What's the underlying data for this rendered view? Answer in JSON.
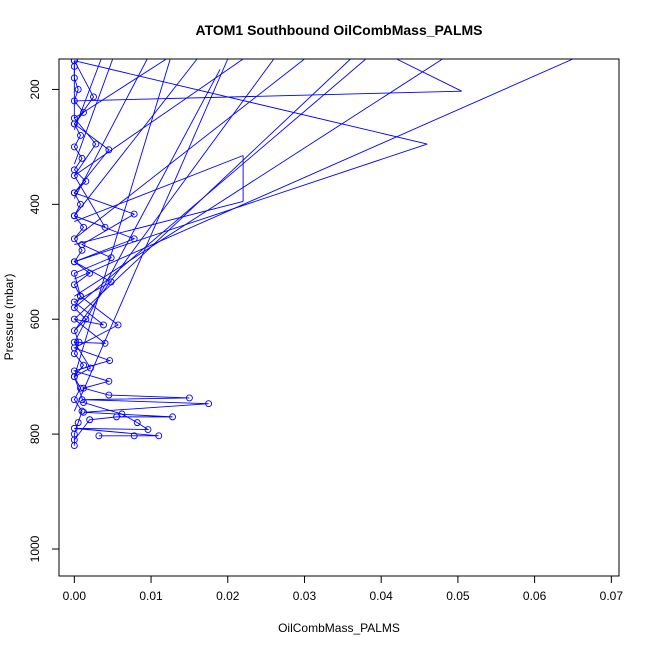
{
  "chart_data": {
    "type": "line",
    "title": "ATOM1 Southbound OilCombMass_PALMS",
    "xlabel": "OilCombMass_PALMS",
    "ylabel": "Pressure (mbar)",
    "xlim": [
      -0.002,
      0.071
    ],
    "ylim": [
      1047,
      147
    ],
    "y_reversed": true,
    "grid": false,
    "xticks": [
      0.0,
      0.01,
      0.02,
      0.03,
      0.04,
      0.05,
      0.06,
      0.07
    ],
    "xtick_labels": [
      "0.00",
      "0.01",
      "0.02",
      "0.03",
      "0.04",
      "0.05",
      "0.06",
      "0.07"
    ],
    "yticks": [
      200,
      400,
      600,
      800,
      1000
    ],
    "ytick_labels": [
      "200",
      "400",
      "600",
      "800",
      "1000"
    ],
    "series_color": "#0000ff",
    "series": [
      {
        "values": [
          [
            0.0,
            820
          ],
          [
            0.0,
            800
          ],
          [
            0.0005,
            780
          ],
          [
            0.001,
            760
          ],
          [
            0.0,
            740
          ],
          [
            0.0008,
            720
          ],
          [
            0.0,
            700
          ],
          [
            0.0012,
            680
          ],
          [
            0.0,
            660
          ],
          [
            0.0006,
            640
          ],
          [
            0.0,
            620
          ],
          [
            0.0015,
            600
          ],
          [
            0.0,
            580
          ],
          [
            0.0008,
            560
          ],
          [
            0.0,
            540
          ],
          [
            0.002,
            520
          ],
          [
            0.0,
            500
          ],
          [
            0.001,
            480
          ],
          [
            0.0,
            460
          ],
          [
            0.0012,
            440
          ],
          [
            0.0,
            420
          ],
          [
            0.0008,
            400
          ],
          [
            0.0,
            380
          ],
          [
            0.0015,
            360
          ],
          [
            0.0,
            340
          ],
          [
            0.001,
            320
          ],
          [
            0.0,
            300
          ],
          [
            0.0008,
            280
          ],
          [
            0.0,
            260
          ],
          [
            0.0012,
            240
          ],
          [
            0.0,
            220
          ],
          [
            0.0005,
            200
          ],
          [
            0.0,
            180
          ],
          [
            0.0,
            160
          ],
          [
            0.0,
            150
          ]
        ]
      },
      {
        "values": [
          [
            0.0,
            810
          ],
          [
            0.002,
            775
          ],
          [
            0.0055,
            770
          ],
          [
            0.0128,
            770
          ],
          [
            0.0012,
            762
          ],
          [
            0.0175,
            747
          ],
          [
            0.001,
            740
          ],
          [
            0.015,
            737
          ],
          [
            0.0045,
            732
          ],
          [
            0.0012,
            720
          ],
          [
            0.0045,
            708
          ],
          [
            0.0,
            690
          ],
          [
            0.0046,
            672
          ],
          [
            0.0,
            650
          ],
          [
            0.0057,
            610
          ],
          [
            0.0008,
            560
          ],
          [
            0.0,
            520
          ],
          [
            0.0048,
            493
          ],
          [
            0.001,
            470
          ],
          [
            0.0078,
            417
          ],
          [
            0.0,
            380
          ],
          [
            0.0045,
            305
          ],
          [
            0.0,
            260
          ],
          [
            0.0025,
            213
          ],
          [
            0.0,
            150
          ]
        ]
      },
      {
        "values": [
          [
            0.0032,
            803
          ],
          [
            0.0078,
            803
          ],
          [
            0.011,
            803
          ],
          [
            0.0,
            790
          ],
          [
            0.0096,
            792
          ],
          [
            0.0082,
            780
          ],
          [
            0.0062,
            765
          ],
          [
            0.0012,
            745
          ],
          [
            0.0,
            700
          ],
          [
            0.0021,
            685
          ],
          [
            0.0,
            640
          ],
          [
            0.004,
            642
          ],
          [
            0.0,
            600
          ],
          [
            0.0038,
            610
          ],
          [
            0.0,
            570
          ],
          [
            0.0048,
            535
          ],
          [
            0.0,
            500
          ],
          [
            0.0078,
            460
          ],
          [
            0.0,
            420
          ],
          [
            0.004,
            440
          ],
          [
            0.0,
            350
          ],
          [
            0.0028,
            295
          ],
          [
            0.0,
            250
          ],
          [
            0.0,
            150
          ]
        ]
      }
    ],
    "long_segments": [
      [
        [
          0.0,
          430
        ],
        [
          0.022,
          315
        ]
      ],
      [
        [
          0.022,
          315
        ],
        [
          0.022,
          395
        ]
      ],
      [
        [
          0.022,
          395
        ],
        [
          0.0,
          470
        ]
      ],
      [
        [
          0.0,
          500
        ],
        [
          0.046,
          295
        ]
      ],
      [
        [
          0.0,
          530
        ],
        [
          0.065,
          147
        ]
      ],
      [
        [
          0.0,
          560
        ],
        [
          0.048,
          147
        ]
      ],
      [
        [
          0.0,
          600
        ],
        [
          0.036,
          147
        ]
      ],
      [
        [
          0.0,
          640
        ],
        [
          0.019,
          165
        ]
      ],
      [
        [
          0.0,
          620
        ],
        [
          0.026,
          147
        ]
      ],
      [
        [
          0.0,
          460
        ],
        [
          0.03,
          147
        ]
      ],
      [
        [
          0.0,
          420
        ],
        [
          0.016,
          147
        ]
      ],
      [
        [
          0.0,
          220
        ],
        [
          0.0505,
          203
        ]
      ],
      [
        [
          0.0505,
          203
        ],
        [
          0.042,
          147
        ]
      ],
      [
        [
          0.0,
          150
        ],
        [
          0.046,
          295
        ]
      ],
      [
        [
          0.0,
          390
        ],
        [
          0.0095,
          147
        ]
      ],
      [
        [
          0.0,
          330
        ],
        [
          0.005,
          147
        ]
      ],
      [
        [
          0.0,
          270
        ],
        [
          0.0035,
          147
        ]
      ],
      [
        [
          0.0,
          760
        ],
        [
          0.02,
          147
        ]
      ],
      [
        [
          0.0,
          700
        ],
        [
          0.0125,
          147
        ]
      ],
      [
        [
          0.0,
          250
        ],
        [
          0.012,
          147
        ]
      ],
      [
        [
          0.0,
          580
        ],
        [
          0.038,
          147
        ]
      ],
      [
        [
          0.0,
          350
        ],
        [
          0.022,
          147
        ]
      ]
    ]
  }
}
